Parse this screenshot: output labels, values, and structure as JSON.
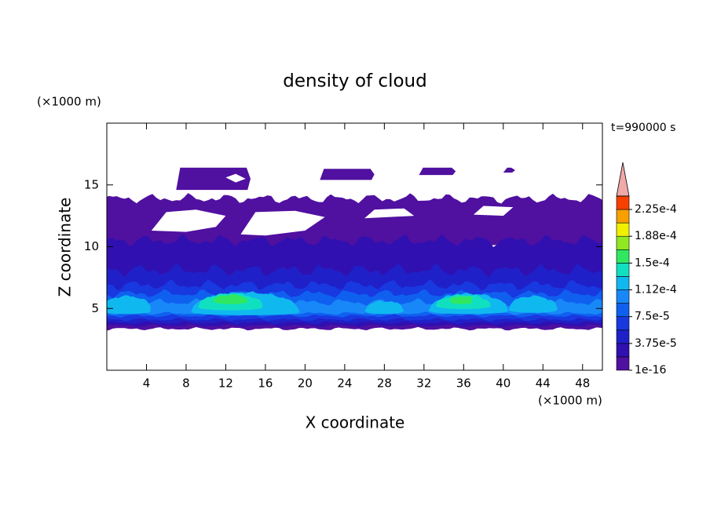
{
  "chart_data": {
    "type": "contour",
    "title": "density of cloud",
    "xlabel": "X coordinate",
    "ylabel": "Z coordinate",
    "x_unit": "(×1000 m)",
    "y_unit": "(×1000 m)",
    "annotation": "t=990000 s",
    "xlim": [
      0,
      50
    ],
    "ylim": [
      0,
      20
    ],
    "xticks": [
      4,
      8,
      12,
      16,
      20,
      24,
      28,
      32,
      36,
      40,
      44,
      48
    ],
    "yticks": [
      5,
      10,
      15
    ],
    "colorbar": {
      "levels": [
        1e-16,
        1.875e-05,
        3.75e-05,
        5.625e-05,
        7.5e-05,
        9.375e-05,
        0.0001125,
        0.00013125,
        0.00015,
        0.00016875,
        0.0001875,
        0.00020625,
        0.000225,
        0.00024375
      ],
      "colors": [
        "#5010a0",
        "#3010b0",
        "#2020c8",
        "#1838e0",
        "#1060f0",
        "#1888f8",
        "#10b8f0",
        "#10e0c0",
        "#30e860",
        "#90e820",
        "#f0f000",
        "#f8a000",
        "#f84000"
      ],
      "over_color": "#f0a8a8",
      "ticks": [
        {
          "value": 1e-16,
          "label": "1e-16"
        },
        {
          "value": 3.75e-05,
          "label": "3.75e-5"
        },
        {
          "value": 7.5e-05,
          "label": "7.5e-5"
        },
        {
          "value": 0.0001125,
          "label": "1.12e-4"
        },
        {
          "value": 0.00015,
          "label": "1.5e-4"
        },
        {
          "value": 0.0001875,
          "label": "1.88e-4"
        },
        {
          "value": 0.000225,
          "label": "2.25e-4"
        }
      ]
    }
  }
}
